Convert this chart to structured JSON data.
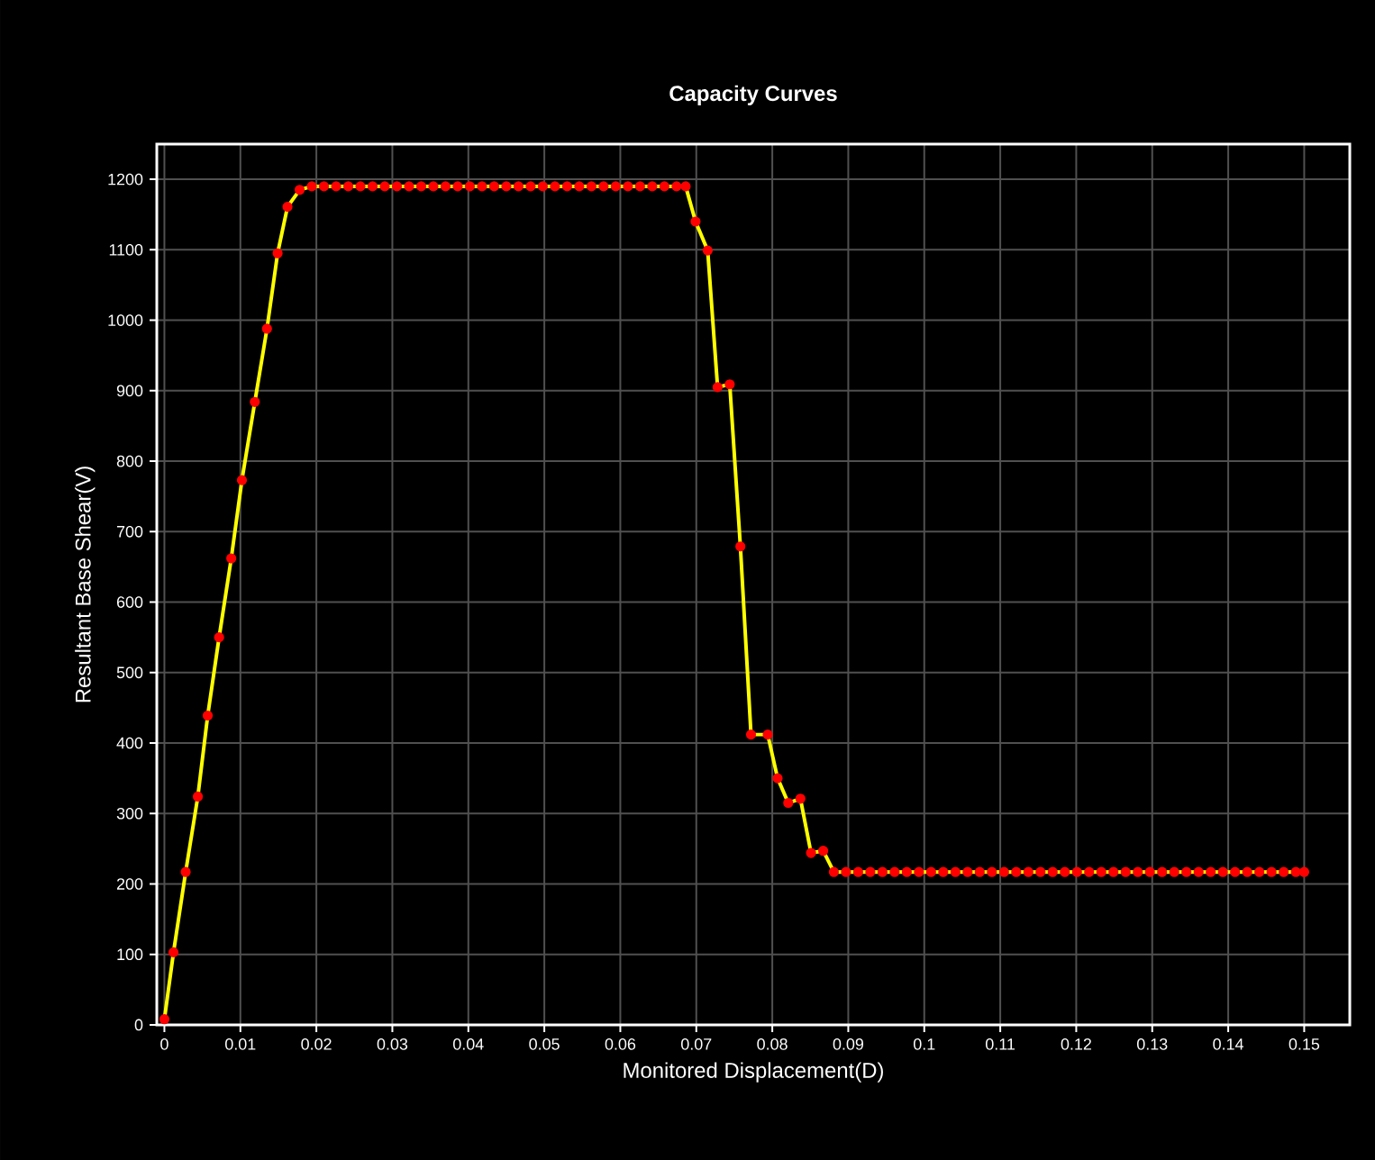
{
  "chart_data": {
    "type": "line",
    "title": "Capacity Curves",
    "xlabel": "Monitored Displacement(D)",
    "ylabel": "Resultant Base Shear(V)",
    "xlim": [
      -0.001,
      0.156
    ],
    "ylim": [
      0,
      1250
    ],
    "xticks": [
      0,
      0.01,
      0.02,
      0.03,
      0.04,
      0.05,
      0.06,
      0.07,
      0.08,
      0.09,
      0.1,
      0.11,
      0.12,
      0.13,
      0.14,
      0.15
    ],
    "yticks": [
      0,
      100,
      200,
      300,
      400,
      500,
      600,
      700,
      800,
      900,
      1000,
      1100,
      1200
    ],
    "grid": true,
    "marker": "circle",
    "line_style": "solid",
    "series": [
      {
        "color": "#ffff00",
        "x": [
          0,
          0.0012,
          0.0028,
          0.0044,
          0.0057,
          0.0072,
          0.0088,
          0.0102,
          0.0119,
          0.0135,
          0.0149,
          0.0162,
          0.0178,
          0.0194,
          0.021,
          0.0226,
          0.0242,
          0.0258,
          0.0274,
          0.029,
          0.0306,
          0.0322,
          0.0338,
          0.0354,
          0.037,
          0.0386,
          0.0402,
          0.0418,
          0.0434,
          0.045,
          0.0466,
          0.0482,
          0.0498,
          0.0514,
          0.053,
          0.0546,
          0.0562,
          0.0578,
          0.0594,
          0.061,
          0.0626,
          0.0642,
          0.0658,
          0.0674,
          0.0686,
          0.0699,
          0.0715,
          0.0728,
          0.0744,
          0.0758,
          0.0772,
          0.0794,
          0.0807,
          0.0821,
          0.0837,
          0.0851,
          0.0867,
          0.0881,
          0.0897,
          0.0913,
          0.0929,
          0.0945,
          0.0961,
          0.0977,
          0.0993,
          0.1009,
          0.1025,
          0.1041,
          0.1057,
          0.1073,
          0.1089,
          0.1105,
          0.1121,
          0.1137,
          0.1153,
          0.1169,
          0.1185,
          0.1201,
          0.1217,
          0.1233,
          0.1249,
          0.1265,
          0.1281,
          0.1297,
          0.1313,
          0.1329,
          0.1345,
          0.1361,
          0.1377,
          0.1393,
          0.1409,
          0.1425,
          0.1441,
          0.1457,
          0.1473,
          0.1489,
          0.15
        ],
        "values": [
          8,
          103,
          217,
          324,
          439,
          550,
          662,
          773,
          884,
          988,
          1095,
          1161,
          1185,
          1190,
          1190,
          1190,
          1190,
          1190,
          1190,
          1190,
          1190,
          1190,
          1190,
          1190,
          1190,
          1190,
          1190,
          1190,
          1190,
          1190,
          1190,
          1190,
          1190,
          1190,
          1190,
          1190,
          1190,
          1190,
          1190,
          1190,
          1190,
          1190,
          1190,
          1190,
          1190,
          1140,
          1099,
          905,
          909,
          679,
          412,
          412,
          350,
          315,
          321,
          244,
          247,
          217,
          217,
          217,
          217,
          217,
          217,
          217,
          217,
          217,
          217,
          217,
          217,
          217,
          217,
          217,
          217,
          217,
          217,
          217,
          217,
          217,
          217,
          217,
          217,
          217,
          217,
          217,
          217,
          217,
          217,
          217,
          217,
          217,
          217,
          217,
          217,
          217,
          217,
          217,
          217
        ]
      }
    ]
  }
}
